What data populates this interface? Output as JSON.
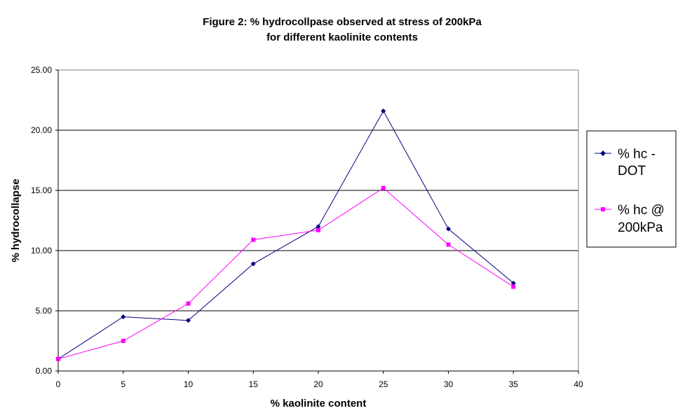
{
  "chart_data": {
    "type": "line",
    "title_lines": [
      "Figure 2: % hydrocollpase observed at stress of 200kPa",
      "for different kaolinite contents"
    ],
    "xlabel": "% kaolinite content",
    "ylabel": "% hydrocollapse",
    "xlim": [
      0,
      40
    ],
    "ylim": [
      0,
      25
    ],
    "x_ticks": [
      "0",
      "5",
      "10",
      "15",
      "20",
      "25",
      "30",
      "35",
      "40"
    ],
    "y_ticks": [
      "0.00",
      "5.00",
      "10.00",
      "15.00",
      "20.00",
      "25.00"
    ],
    "grid": "horizontal",
    "legend_position": "right",
    "series": [
      {
        "name": "% hc - DOT",
        "legend_lines": [
          "% hc -",
          "DOT"
        ],
        "color": "#000080",
        "marker": "diamond",
        "x": [
          0,
          5,
          10,
          15,
          20,
          25,
          30,
          35
        ],
        "y": [
          1.0,
          4.5,
          4.2,
          8.9,
          12.0,
          21.6,
          11.8,
          7.3
        ]
      },
      {
        "name": "% hc @ 200kPa",
        "legend_lines": [
          "% hc @",
          "200kPa"
        ],
        "color": "#ff00ff",
        "marker": "square",
        "x": [
          0,
          5,
          10,
          15,
          20,
          25,
          30,
          35
        ],
        "y": [
          1.0,
          2.5,
          5.6,
          10.9,
          11.7,
          15.2,
          10.5,
          7.0
        ]
      }
    ]
  }
}
